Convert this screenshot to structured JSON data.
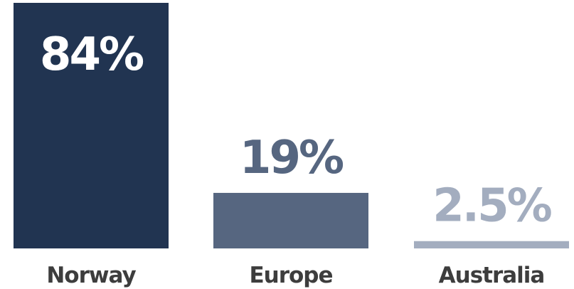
{
  "chart_data": {
    "type": "bar",
    "categories": [
      "Norway",
      "Europe",
      "Australia"
    ],
    "values": [
      84,
      19,
      2.5
    ],
    "value_labels": [
      "84%",
      "19%",
      "2.5%"
    ],
    "unit": "%",
    "ylim": [
      0,
      84
    ],
    "grid": false,
    "legend": "none",
    "bar_colors": [
      "#213451",
      "#566680",
      "#a3adbf"
    ],
    "label_colors": [
      "#ffffff",
      "#566680",
      "#a3adbf"
    ]
  }
}
